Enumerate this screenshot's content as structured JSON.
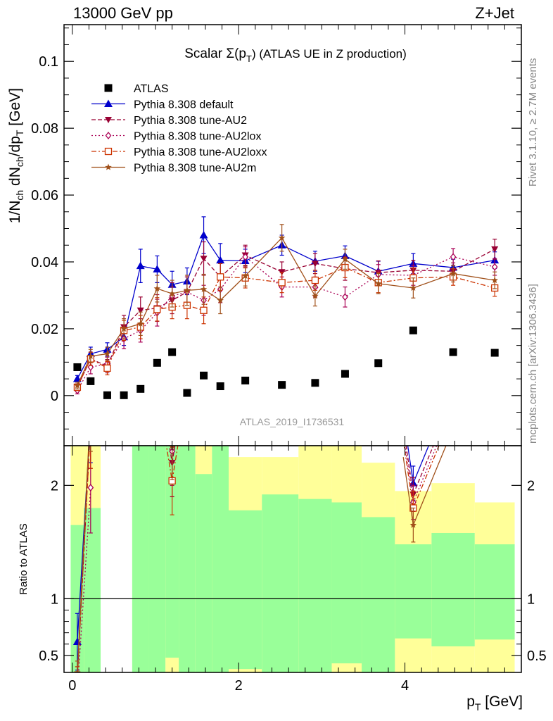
{
  "header": {
    "left": "13000 GeV pp",
    "right": "Z+Jet"
  },
  "side": {
    "rivet": "Rivet 3.1.10, ≥ 2.7M events",
    "mcplots": "mcplots.cern.ch [arXiv:1306.3436]"
  },
  "analysis_id": "ATLAS_2019_I1736531",
  "chart_data": [
    {
      "type": "scatter",
      "title": "Scalar Σ(pT) (ATLAS UE in Z production)",
      "title_main": "Scalar Σ(p",
      "title_sub": "T",
      "title_rest": ") (ATLAS UE in Z production)",
      "ylabel": "1/Nch dNch/dpT [GeV]",
      "xlim": [
        -0.1,
        5.4
      ],
      "ylim": [
        -0.015,
        0.111
      ],
      "xticks": [
        0,
        2,
        4
      ],
      "yticks": [
        0,
        0.02,
        0.04,
        0.06,
        0.08,
        0.1
      ],
      "ytick_labels": [
        "0",
        "0.02",
        "0.04",
        "0.06",
        "0.08",
        "0.1"
      ],
      "xtick_labels": [
        "0",
        "2",
        "4"
      ],
      "legend_position": "top-left",
      "x": [
        0.06,
        0.22,
        0.42,
        0.62,
        0.82,
        1.02,
        1.2,
        1.38,
        1.58,
        1.78,
        2.08,
        2.52,
        2.92,
        3.28,
        3.68,
        4.1,
        4.58,
        5.08
      ],
      "series": [
        {
          "name": "ATLAS",
          "color": "#000000",
          "marker": "square",
          "line": "none",
          "values": [
            0.0085,
            0.0043,
            0.0001,
            0.0001,
            0.002,
            0.0098,
            0.013,
            0.0008,
            0.006,
            0.0028,
            0.0045,
            0.0032,
            0.0038,
            0.0065,
            0.0097,
            0.0195,
            0.013,
            0.0128
          ],
          "errors": [
            0,
            0,
            0,
            0,
            0,
            0,
            0,
            0,
            0,
            0,
            0,
            0,
            0,
            0,
            0,
            0,
            0,
            0
          ]
        },
        {
          "name": "Pythia 8.308 default",
          "color": "#0000cc",
          "marker": "triangle-up",
          "line": "solid",
          "values": [
            0.005,
            0.0125,
            0.0138,
            0.0175,
            0.0388,
            0.0378,
            0.0332,
            0.0342,
            0.048,
            0.0405,
            0.0403,
            0.045,
            0.0402,
            0.0418,
            0.0372,
            0.0395,
            0.0383,
            0.0405
          ],
          "errors": [
            0.001,
            0.002,
            0.002,
            0.0025,
            0.005,
            0.004,
            0.004,
            0.004,
            0.0055,
            0.005,
            0.0035,
            0.003,
            0.003,
            0.003,
            0.003,
            0.003,
            0.0025,
            0.0025
          ]
        },
        {
          "name": "Pythia 8.308 tune-AU2",
          "color": "#990033",
          "marker": "triangle-down",
          "line": "dashed",
          "values": [
            0.0025,
            0.011,
            0.0088,
            0.0205,
            0.0255,
            0.0262,
            0.0285,
            0.031,
            0.041,
            0.0355,
            0.042,
            0.037,
            0.0395,
            0.038,
            0.0368,
            0.0375,
            0.0372,
            0.0438
          ],
          "errors": [
            0.001,
            0.002,
            0.002,
            0.0035,
            0.004,
            0.004,
            0.004,
            0.0045,
            0.005,
            0.004,
            0.003,
            0.003,
            0.003,
            0.0035,
            0.0035,
            0.003,
            0.0025,
            0.003
          ]
        },
        {
          "name": "Pythia 8.308 tune-AU2lox",
          "color": "#aa0055",
          "marker": "diamond-open",
          "line": "dotted",
          "values": [
            0.0015,
            0.0085,
            0.0095,
            0.017,
            0.0195,
            0.0248,
            0.0298,
            0.031,
            0.0285,
            0.0318,
            0.0415,
            0.0325,
            0.0325,
            0.0295,
            0.0362,
            0.036,
            0.0415,
            0.0385
          ],
          "errors": [
            0.001,
            0.002,
            0.002,
            0.003,
            0.0035,
            0.004,
            0.004,
            0.0045,
            0.0045,
            0.004,
            0.003,
            0.003,
            0.003,
            0.003,
            0.003,
            0.003,
            0.0025,
            0.0025
          ]
        },
        {
          "name": "Pythia 8.308 tune-AU2loxx",
          "color": "#cc3300",
          "marker": "square-open",
          "line": "dashdot",
          "values": [
            0.0025,
            0.011,
            0.0082,
            0.0195,
            0.0205,
            0.0258,
            0.0265,
            0.027,
            0.0255,
            0.0355,
            0.0352,
            0.0338,
            0.0345,
            0.0383,
            0.0338,
            0.0352,
            0.0355,
            0.0322
          ],
          "errors": [
            0.001,
            0.002,
            0.002,
            0.003,
            0.0035,
            0.0035,
            0.0035,
            0.004,
            0.004,
            0.004,
            0.003,
            0.003,
            0.003,
            0.003,
            0.003,
            0.003,
            0.0025,
            0.0025
          ]
        },
        {
          "name": "Pythia 8.308 tune-AU2m",
          "color": "#a0501a",
          "marker": "star",
          "line": "solid",
          "values": [
            0.003,
            0.0118,
            0.0125,
            0.02,
            0.0215,
            0.032,
            0.0305,
            0.0315,
            0.0318,
            0.0285,
            0.0358,
            0.0472,
            0.0298,
            0.0408,
            0.0335,
            0.0322,
            0.0365,
            0.0345
          ],
          "errors": [
            0.001,
            0.002,
            0.002,
            0.003,
            0.0035,
            0.004,
            0.004,
            0.0045,
            0.0045,
            0.004,
            0.003,
            0.004,
            0.003,
            0.003,
            0.003,
            0.003,
            0.0025,
            0.0025
          ]
        }
      ]
    },
    {
      "type": "scatter",
      "ylabel": "Ratio to ATLAS",
      "xlabel": "pT [GeV]",
      "xlabel_main": "p",
      "xlabel_sub": "T",
      "xlabel_rest": " [GeV]",
      "xlim": [
        -0.1,
        5.4
      ],
      "ylim": [
        0.35,
        2.35
      ],
      "yticks": [
        0.5,
        1,
        2
      ],
      "ytick_labels": [
        "0.5",
        "1",
        "2"
      ],
      "reference_line": 1,
      "bands": [
        {
          "x0": -0.02,
          "x1": 0.14,
          "green": [
            0.35,
            1.65
          ],
          "yellow": [
            0.35,
            2.35
          ]
        },
        {
          "x0": 0.14,
          "x1": 0.34,
          "green": [
            0.35,
            1.8
          ],
          "yellow": [
            0.35,
            2.35
          ]
        },
        {
          "x0": 0.72,
          "x1": 0.92,
          "green": [
            0.35,
            2.35
          ],
          "yellow": [
            0.35,
            2.35
          ]
        },
        {
          "x0": 0.92,
          "x1": 1.12,
          "green": [
            0.35,
            2.35
          ],
          "yellow": [
            0.35,
            2.35
          ]
        },
        {
          "x0": 1.12,
          "x1": 1.28,
          "green": [
            0.48,
            2.35
          ],
          "yellow": [
            0.35,
            2.35
          ]
        },
        {
          "x0": 1.28,
          "x1": 1.48,
          "green": [
            0.35,
            2.35
          ],
          "yellow": [
            0.35,
            2.35
          ]
        },
        {
          "x0": 1.48,
          "x1": 1.68,
          "green": [
            0.35,
            2.1
          ],
          "yellow": [
            0.35,
            2.35
          ]
        },
        {
          "x0": 1.68,
          "x1": 1.88,
          "green": [
            0.35,
            2.35
          ],
          "yellow": [
            0.35,
            2.35
          ]
        },
        {
          "x0": 1.88,
          "x1": 2.28,
          "green": [
            0.38,
            1.78
          ],
          "yellow": [
            0.35,
            2.25
          ]
        },
        {
          "x0": 2.28,
          "x1": 2.72,
          "green": [
            0.35,
            1.92
          ],
          "yellow": [
            0.35,
            2.25
          ]
        },
        {
          "x0": 2.72,
          "x1": 3.12,
          "green": [
            0.35,
            1.88
          ],
          "yellow": [
            0.35,
            2.35
          ]
        },
        {
          "x0": 3.12,
          "x1": 3.48,
          "green": [
            0.43,
            1.85
          ],
          "yellow": [
            0.35,
            2.35
          ]
        },
        {
          "x0": 3.48,
          "x1": 3.88,
          "green": [
            0.35,
            1.72
          ],
          "yellow": [
            0.35,
            2.2
          ]
        },
        {
          "x0": 3.88,
          "x1": 4.32,
          "green": [
            0.65,
            1.48
          ],
          "yellow": [
            0.35,
            1.95
          ]
        },
        {
          "x0": 4.32,
          "x1": 4.84,
          "green": [
            0.58,
            1.58
          ],
          "yellow": [
            0.35,
            2.02
          ]
        },
        {
          "x0": 4.84,
          "x1": 5.32,
          "green": [
            0.64,
            1.48
          ],
          "yellow": [
            0.35,
            1.85
          ]
        }
      ],
      "ratio_series": [
        {
          "name": "Pythia 8.308 default",
          "points": [
            [
              0.06,
              0.62,
              0.25
            ],
            [
              0.22,
              2.6,
              0.4
            ],
            [
              1.2,
              2.6,
              0.3
            ],
            [
              4.1,
              2.02,
              0.15
            ]
          ]
        },
        {
          "name": "Pythia 8.308 tune-AU2",
          "points": [
            [
              0.06,
              0.3,
              0.1
            ],
            [
              0.22,
              2.55,
              0.4
            ],
            [
              1.2,
              2.2,
              0.3
            ],
            [
              4.1,
              1.92,
              0.15
            ]
          ]
        },
        {
          "name": "Pythia 8.308 tune-AU2lox",
          "points": [
            [
              0.06,
              0.18,
              0.1
            ],
            [
              0.22,
              1.98,
              0.4
            ],
            [
              1.2,
              2.3,
              0.3
            ],
            [
              4.1,
              1.85,
              0.15
            ]
          ]
        },
        {
          "name": "Pythia 8.308 tune-AU2loxx",
          "points": [
            [
              0.06,
              0.3,
              0.1
            ],
            [
              0.22,
              2.55,
              0.4
            ],
            [
              1.2,
              2.04,
              0.3
            ],
            [
              4.1,
              1.8,
              0.15
            ]
          ]
        },
        {
          "name": "Pythia 8.308 tune-AU2m",
          "points": [
            [
              0.06,
              0.35,
              0.1
            ],
            [
              0.22,
              2.7,
              0.4
            ],
            [
              1.2,
              2.35,
              0.3
            ],
            [
              4.1,
              1.65,
              0.15
            ]
          ]
        }
      ]
    }
  ]
}
